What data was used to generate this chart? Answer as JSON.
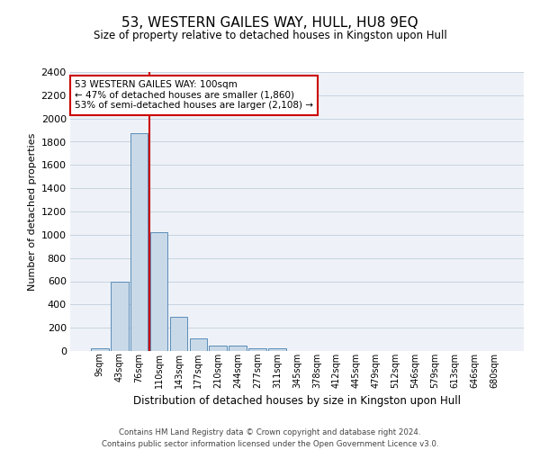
{
  "title": "53, WESTERN GAILES WAY, HULL, HU8 9EQ",
  "subtitle": "Size of property relative to detached houses in Kingston upon Hull",
  "xlabel": "Distribution of detached houses by size in Kingston upon Hull",
  "ylabel": "Number of detached properties",
  "footer_line1": "Contains HM Land Registry data © Crown copyright and database right 2024.",
  "footer_line2": "Contains public sector information licensed under the Open Government Licence v3.0.",
  "bin_labels": [
    "9sqm",
    "43sqm",
    "76sqm",
    "110sqm",
    "143sqm",
    "177sqm",
    "210sqm",
    "244sqm",
    "277sqm",
    "311sqm",
    "345sqm",
    "378sqm",
    "412sqm",
    "445sqm",
    "479sqm",
    "512sqm",
    "546sqm",
    "579sqm",
    "613sqm",
    "646sqm",
    "680sqm"
  ],
  "bar_values": [
    20,
    595,
    1870,
    1020,
    295,
    110,
    50,
    45,
    25,
    20,
    0,
    0,
    0,
    0,
    0,
    0,
    0,
    0,
    0,
    0,
    0
  ],
  "bar_color": "#c9d9e8",
  "bar_edge_color": "#5b8db8",
  "grid_color": "#c8d4e0",
  "background_color": "#eef2f8",
  "ylim": [
    0,
    2400
  ],
  "yticks": [
    0,
    200,
    400,
    600,
    800,
    1000,
    1200,
    1400,
    1600,
    1800,
    2000,
    2200,
    2400
  ],
  "vline_color": "#cc0000",
  "annotation_text": "53 WESTERN GAILES WAY: 100sqm\n← 47% of detached houses are smaller (1,860)\n53% of semi-detached houses are larger (2,108) →",
  "annotation_box_color": "#cc0000",
  "annotation_bg": "#ffffff"
}
